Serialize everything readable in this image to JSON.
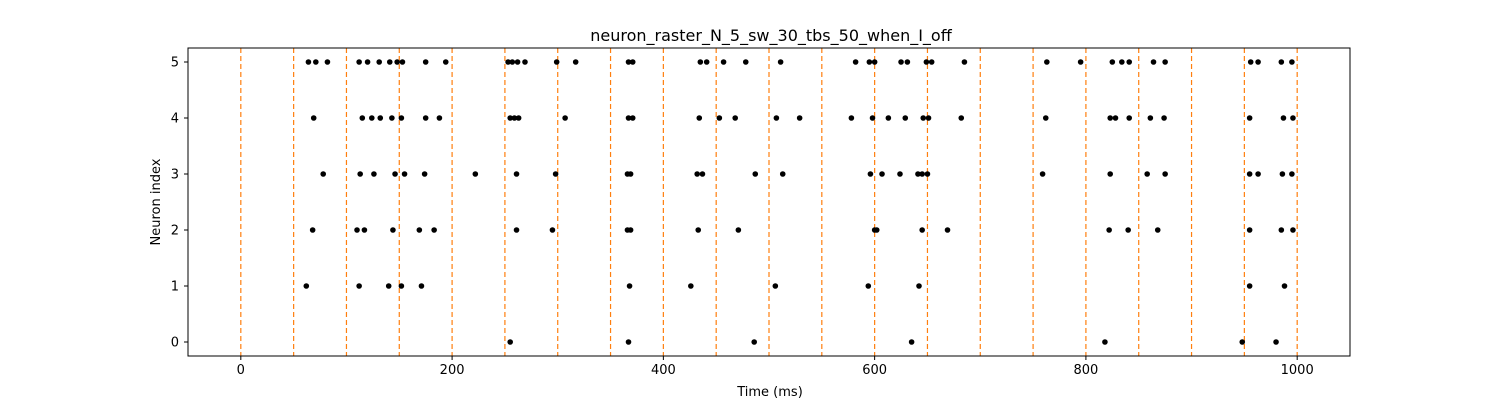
{
  "chart_data": {
    "type": "scatter",
    "title": "neuron_raster_N_5_sw_30_tbs_50_when_I_off",
    "xlabel": "Time (ms)",
    "ylabel": "Neuron index",
    "xlim": [
      -50,
      1050
    ],
    "ylim": [
      -0.25,
      5.25
    ],
    "xticks": [
      0,
      200,
      400,
      600,
      800,
      1000
    ],
    "yticks": [
      0,
      1,
      2,
      3,
      4,
      5
    ],
    "grid": false,
    "marker_color": "#000000",
    "vline_color": "#ff7f0e",
    "vlines": [
      0,
      50,
      100,
      150,
      200,
      250,
      300,
      350,
      400,
      450,
      500,
      550,
      600,
      650,
      700,
      750,
      800,
      850,
      900,
      950,
      1000
    ],
    "spikes": [
      {
        "neuron": 0,
        "times": [
          255,
          367,
          486,
          635,
          818,
          948,
          980
        ]
      },
      {
        "neuron": 1,
        "times": [
          62,
          112,
          140,
          152,
          171,
          368,
          426,
          506,
          594,
          642,
          955,
          988
        ]
      },
      {
        "neuron": 2,
        "times": [
          68,
          110,
          117,
          144,
          169,
          183,
          261,
          295,
          366,
          369,
          433,
          471,
          600,
          602,
          645,
          669,
          822,
          840,
          868,
          955,
          985,
          996
        ]
      },
      {
        "neuron": 3,
        "times": [
          78,
          113,
          126,
          146,
          155,
          174,
          222,
          261,
          298,
          366,
          369,
          432,
          437,
          487,
          513,
          596,
          607,
          624,
          641,
          645,
          650,
          759,
          823,
          858,
          875,
          955,
          963,
          986,
          995
        ]
      },
      {
        "neuron": 4,
        "times": [
          69,
          115,
          124,
          132,
          143,
          152,
          175,
          188,
          255,
          259,
          263,
          307,
          367,
          371,
          434,
          453,
          468,
          507,
          529,
          578,
          598,
          613,
          629,
          646,
          651,
          682,
          762,
          823,
          828,
          841,
          861,
          874,
          955,
          987,
          996
        ]
      },
      {
        "neuron": 5,
        "times": [
          64,
          71,
          82,
          112,
          120,
          131,
          141,
          148,
          153,
          175,
          194,
          253,
          257,
          262,
          269,
          299,
          317,
          367,
          371,
          435,
          441,
          457,
          478,
          511,
          582,
          595,
          600,
          625,
          631,
          649,
          654,
          685,
          763,
          795,
          825,
          834,
          841,
          864,
          875,
          956,
          963,
          985,
          995
        ]
      }
    ]
  }
}
